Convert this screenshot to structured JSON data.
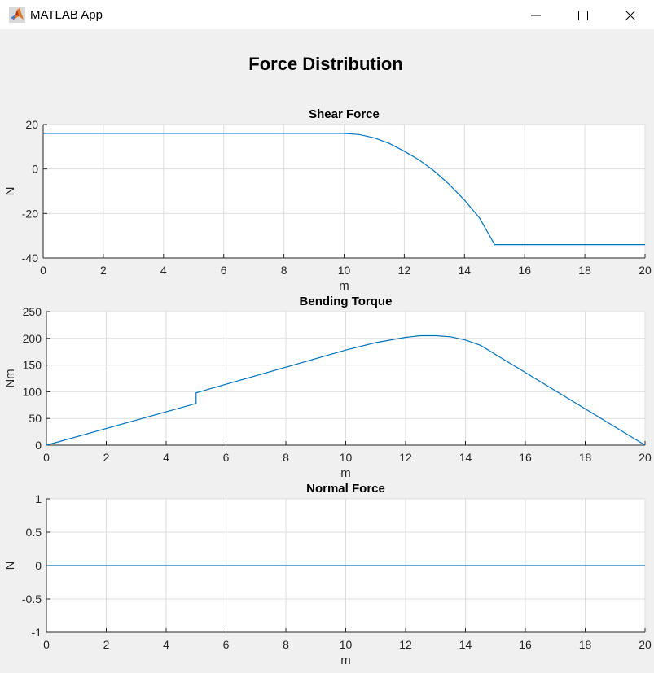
{
  "window": {
    "title": "MATLAB App",
    "controls": {
      "minimize_icon": "minimize-icon",
      "maximize_icon": "maximize-icon",
      "close_icon": "close-icon"
    }
  },
  "app": {
    "title": "Force Distribution"
  },
  "colors": {
    "line": "#0072BD",
    "grid": "#dedede",
    "axis": "#262626",
    "background": "#f0f0f0"
  },
  "chart_data": [
    {
      "type": "line",
      "title": "Shear Force",
      "xlabel": "m",
      "ylabel": "N",
      "xlim": [
        0,
        20
      ],
      "ylim": [
        -40,
        20
      ],
      "xticks": [
        "0",
        "2",
        "4",
        "6",
        "8",
        "10",
        "12",
        "14",
        "16",
        "18",
        "20"
      ],
      "yticks": [
        "20",
        "0",
        "-20",
        "-40"
      ],
      "grid": true,
      "series": [
        {
          "x": [
            0,
            10,
            10.5,
            11,
            11.5,
            12,
            12.5,
            13,
            13.5,
            14,
            14.5,
            15,
            20
          ],
          "y": [
            16,
            16,
            15.5,
            14,
            11.5,
            8,
            4,
            -1,
            -7,
            -14,
            -22,
            -34,
            -34
          ]
        }
      ]
    },
    {
      "type": "line",
      "title": "Bending Torque",
      "xlabel": "m",
      "ylabel": "Nm",
      "xlim": [
        0,
        20
      ],
      "ylim": [
        0,
        250
      ],
      "xticks": [
        "0",
        "2",
        "4",
        "6",
        "8",
        "10",
        "12",
        "14",
        "16",
        "18",
        "20"
      ],
      "yticks": [
        "250",
        "200",
        "150",
        "100",
        "50",
        "0"
      ],
      "grid": true,
      "series": [
        {
          "x": [
            0,
            5,
            5,
            10,
            11,
            12,
            12.5,
            13,
            13.5,
            14,
            14.5,
            15,
            20
          ],
          "y": [
            0,
            78,
            98,
            178,
            192,
            202,
            205,
            205,
            203,
            197,
            187,
            170,
            0
          ]
        }
      ]
    },
    {
      "type": "line",
      "title": "Normal Force",
      "xlabel": "m",
      "ylabel": "N",
      "xlim": [
        0,
        20
      ],
      "ylim": [
        -1,
        1
      ],
      "xticks": [
        "0",
        "2",
        "4",
        "6",
        "8",
        "10",
        "12",
        "14",
        "16",
        "18",
        "20"
      ],
      "yticks": [
        "1",
        "0.5",
        "0",
        "-0.5",
        "-1"
      ],
      "grid": true,
      "series": [
        {
          "x": [
            0,
            20
          ],
          "y": [
            0,
            0
          ]
        }
      ]
    }
  ]
}
